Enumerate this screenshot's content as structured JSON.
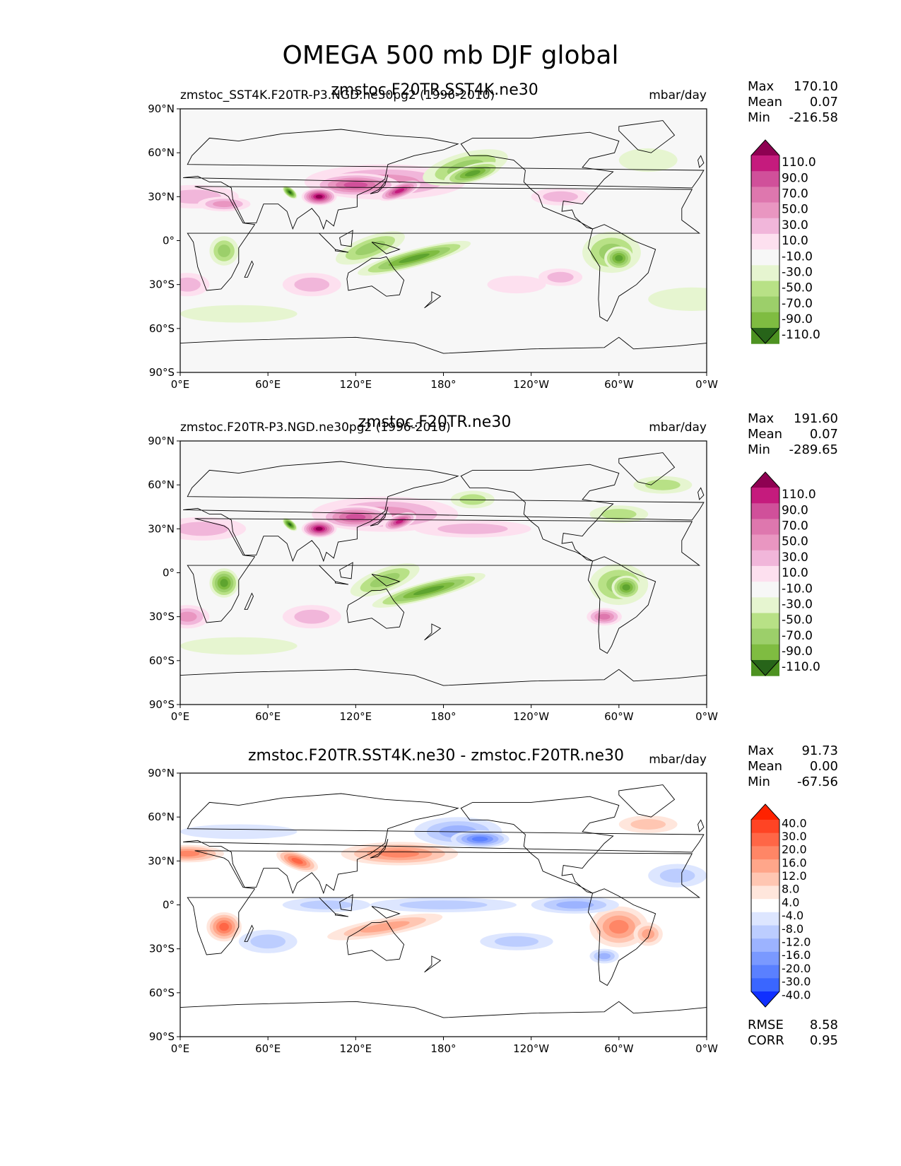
{
  "title": "OMEGA 500 mb DJF global",
  "colors": {
    "pos_scale": [
      "#f7f7f7",
      "#fde0ef",
      "#f1b6da",
      "#e996c1",
      "#de77ae",
      "#d0509a",
      "#c51b7d",
      "#8e0152"
    ],
    "neg_scale": [
      "#f7f7f7",
      "#e6f5d0",
      "#b8e186",
      "#9ccf6a",
      "#7fbc41",
      "#5ea42f",
      "#4d9221",
      "#276419"
    ],
    "diff_pos": [
      "#ffffff",
      "#ffe6dc",
      "#ffc6b2",
      "#ffa68a",
      "#ff8666",
      "#ff6646",
      "#ff4424",
      "#ff2200"
    ],
    "diff_neg": [
      "#ffffff",
      "#dde6ff",
      "#bccdff",
      "#9cb3ff",
      "#7a99ff",
      "#5a80ff",
      "#3a66ff",
      "#1030ff"
    ],
    "land_line": "#000000",
    "ocean_bg": "#f7f7f7"
  },
  "panels": [
    {
      "left_title": "zmstoc_SST4K.F20TR-P3.NGD.ne30pg2 (1996-2010)",
      "center_title": "zmstoc.F20TR.SST4K.ne30",
      "units": "mbar/day",
      "stats": {
        "max_label": "Max",
        "max": "170.10",
        "mean_label": "Mean",
        "mean": "0.07",
        "min_label": "Min",
        "min": "-216.58"
      },
      "cbar_labels": [
        "110.0",
        "90.0",
        "70.0",
        "50.0",
        "30.0",
        "10.0",
        "-10.0",
        "-30.0",
        "-50.0",
        "-70.0",
        "-90.0",
        "-110.0"
      ]
    },
    {
      "left_title": "zmstoc.F20TR-P3.NGD.ne30pg2 (1996-2010)",
      "center_title": "zmstoc.F20TR.ne30",
      "units": "mbar/day",
      "stats": {
        "max_label": "Max",
        "max": "191.60",
        "mean_label": "Mean",
        "mean": "0.07",
        "min_label": "Min",
        "min": "-289.65"
      },
      "cbar_labels": [
        "110.0",
        "90.0",
        "70.0",
        "50.0",
        "30.0",
        "10.0",
        "-10.0",
        "-30.0",
        "-50.0",
        "-70.0",
        "-90.0",
        "-110.0"
      ]
    },
    {
      "left_title": "",
      "center_title": "zmstoc.F20TR.SST4K.ne30 - zmstoc.F20TR.ne30",
      "units": "mbar/day",
      "stats": {
        "max_label": "Max",
        "max": "91.73",
        "mean_label": "Mean",
        "mean": "0.00",
        "min_label": "Min",
        "min": "-67.56"
      },
      "cbar_labels": [
        "40.0",
        "30.0",
        "20.0",
        "16.0",
        "12.0",
        "8.0",
        "4.0",
        "-4.0",
        "-8.0",
        "-12.0",
        "-16.0",
        "-20.0",
        "-30.0",
        "-40.0"
      ],
      "rmse_label": "RMSE",
      "rmse": "8.58",
      "corr_label": "CORR",
      "corr": "0.95"
    }
  ],
  "lat_ticks": [
    "90°N",
    "60°N",
    "30°N",
    "0°",
    "30°S",
    "60°S",
    "90°S"
  ],
  "lon_ticks": [
    "0°E",
    "60°E",
    "120°E",
    "180°",
    "120°W",
    "60°W",
    "0°W"
  ]
}
